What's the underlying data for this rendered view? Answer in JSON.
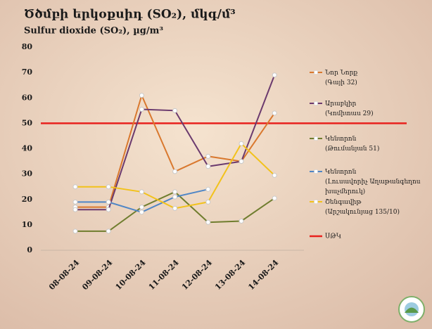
{
  "chart_data": {
    "type": "line",
    "title": "Ծծմբի երկօքսիդ (SO₂), մկգ/մ³",
    "subtitle": "Sulfur dioxide (SO₂), µg/m³",
    "categories": [
      "08-08-24",
      "09-08-24",
      "10-08-24",
      "11-08-24",
      "12-08-24",
      "13-08-24",
      "14-08-24"
    ],
    "ylim": [
      0,
      80
    ],
    "yticks": [
      0,
      10,
      20,
      30,
      40,
      50,
      60,
      70,
      80
    ],
    "grid": false,
    "legend": "right",
    "series": [
      {
        "name": "Նոր Նորք (Գայի 32)",
        "color": "#d9782e",
        "values": [
          17,
          17,
          61,
          31,
          37,
          35,
          54
        ]
      },
      {
        "name": "Արաբկիր (Կոմիտաս 29)",
        "color": "#6b3a6e",
        "values": [
          16,
          16,
          55.5,
          55,
          33,
          35,
          69
        ]
      },
      {
        "name": "Կենտրոն (Թումանյան 51)",
        "color": "#6f7d2e",
        "values": [
          7.5,
          7.5,
          17,
          23,
          11,
          11.5,
          20.5
        ]
      },
      {
        "name": "Կենտրոն (Լուսավորիչ Աղաթանգեղոս խաչմերուկ)",
        "color": "#4f86c6",
        "values": [
          19,
          19,
          15,
          21,
          24,
          null,
          null
        ]
      },
      {
        "name": "Շենգավիթ (Արշակունյաց 135/10)",
        "color": "#f2c21b",
        "values": [
          25,
          25,
          23,
          16.5,
          19,
          42,
          29.5
        ]
      }
    ],
    "threshold": {
      "name": "ՍԹԿ",
      "value": 50,
      "color": "#e8211d"
    }
  }
}
